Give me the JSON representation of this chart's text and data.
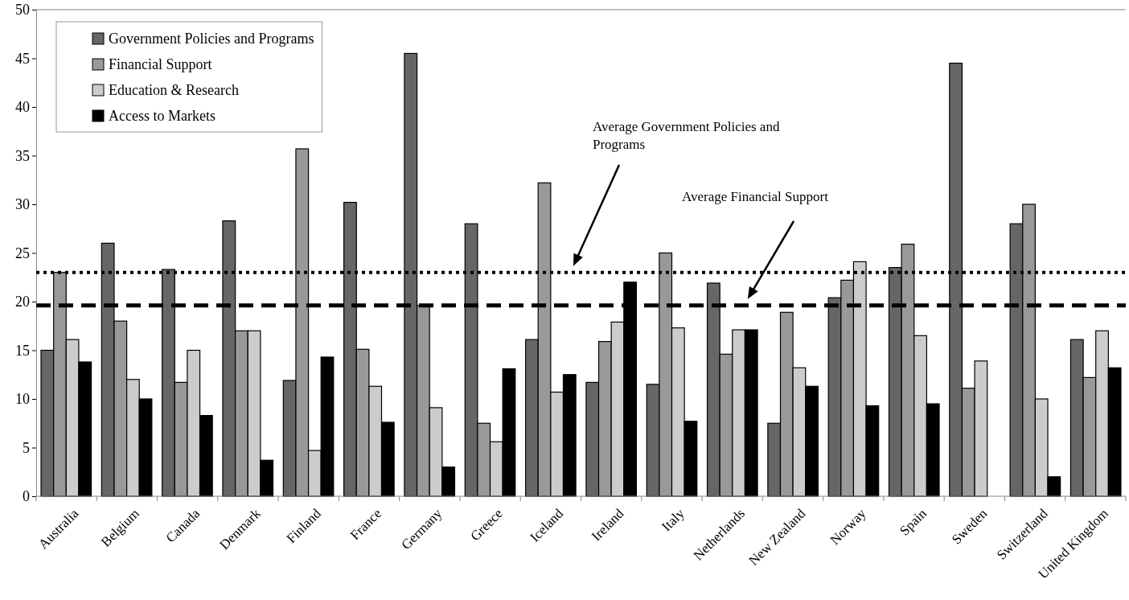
{
  "chart_data": {
    "type": "bar",
    "categories": [
      "Australia",
      "Belgium",
      "Canada",
      "Denmark",
      "Finland",
      "France",
      "Germany",
      "Greece",
      "Iceland",
      "Ireland",
      "Italy",
      "Netherlands",
      "New Zealand",
      "Norway",
      "Spain",
      "Sweden",
      "Switzerland",
      "United Kingdom"
    ],
    "series": [
      {
        "name": "Government Policies and Programs",
        "color": "#666666",
        "values": [
          15,
          26,
          23.3,
          28.3,
          11.9,
          30.2,
          45.5,
          28,
          16.1,
          11.7,
          11.5,
          21.9,
          7.5,
          20.4,
          23.5,
          44.5,
          28,
          16.1
        ]
      },
      {
        "name": "Financial Support",
        "color": "#999999",
        "values": [
          23,
          18,
          11.7,
          17,
          35.7,
          15.1,
          19.6,
          7.5,
          32.2,
          15.9,
          25,
          14.6,
          18.9,
          22.2,
          25.9,
          11.1,
          30,
          12.2
        ]
      },
      {
        "name": "Education & Research",
        "color": "#cccccc",
        "values": [
          16.1,
          12,
          15,
          17,
          4.7,
          11.3,
          9.1,
          5.6,
          10.7,
          17.9,
          17.3,
          17.1,
          13.2,
          24.1,
          16.5,
          13.9,
          10,
          17
        ]
      },
      {
        "name": "Access to Markets",
        "color": "#000000",
        "values": [
          13.8,
          10,
          8.3,
          3.7,
          14.3,
          7.6,
          3,
          13.1,
          12.5,
          22,
          7.7,
          17.1,
          11.3,
          9.3,
          9.5,
          null,
          2,
          13.2
        ]
      }
    ],
    "ylim": [
      0,
      50
    ],
    "yticks": [
      0,
      5,
      10,
      15,
      20,
      25,
      30,
      35,
      40,
      45,
      50
    ],
    "ref_lines": [
      {
        "axis": "y",
        "value": 23,
        "color": "#000000",
        "line_style": "dotted"
      },
      {
        "axis": "y",
        "value": 19.6,
        "color": "#000000",
        "line_style": "dashed"
      }
    ],
    "annotations": [
      "Average Government Policies and Programs",
      "Average Financial Support"
    ],
    "legend": "top left",
    "grid": false
  }
}
